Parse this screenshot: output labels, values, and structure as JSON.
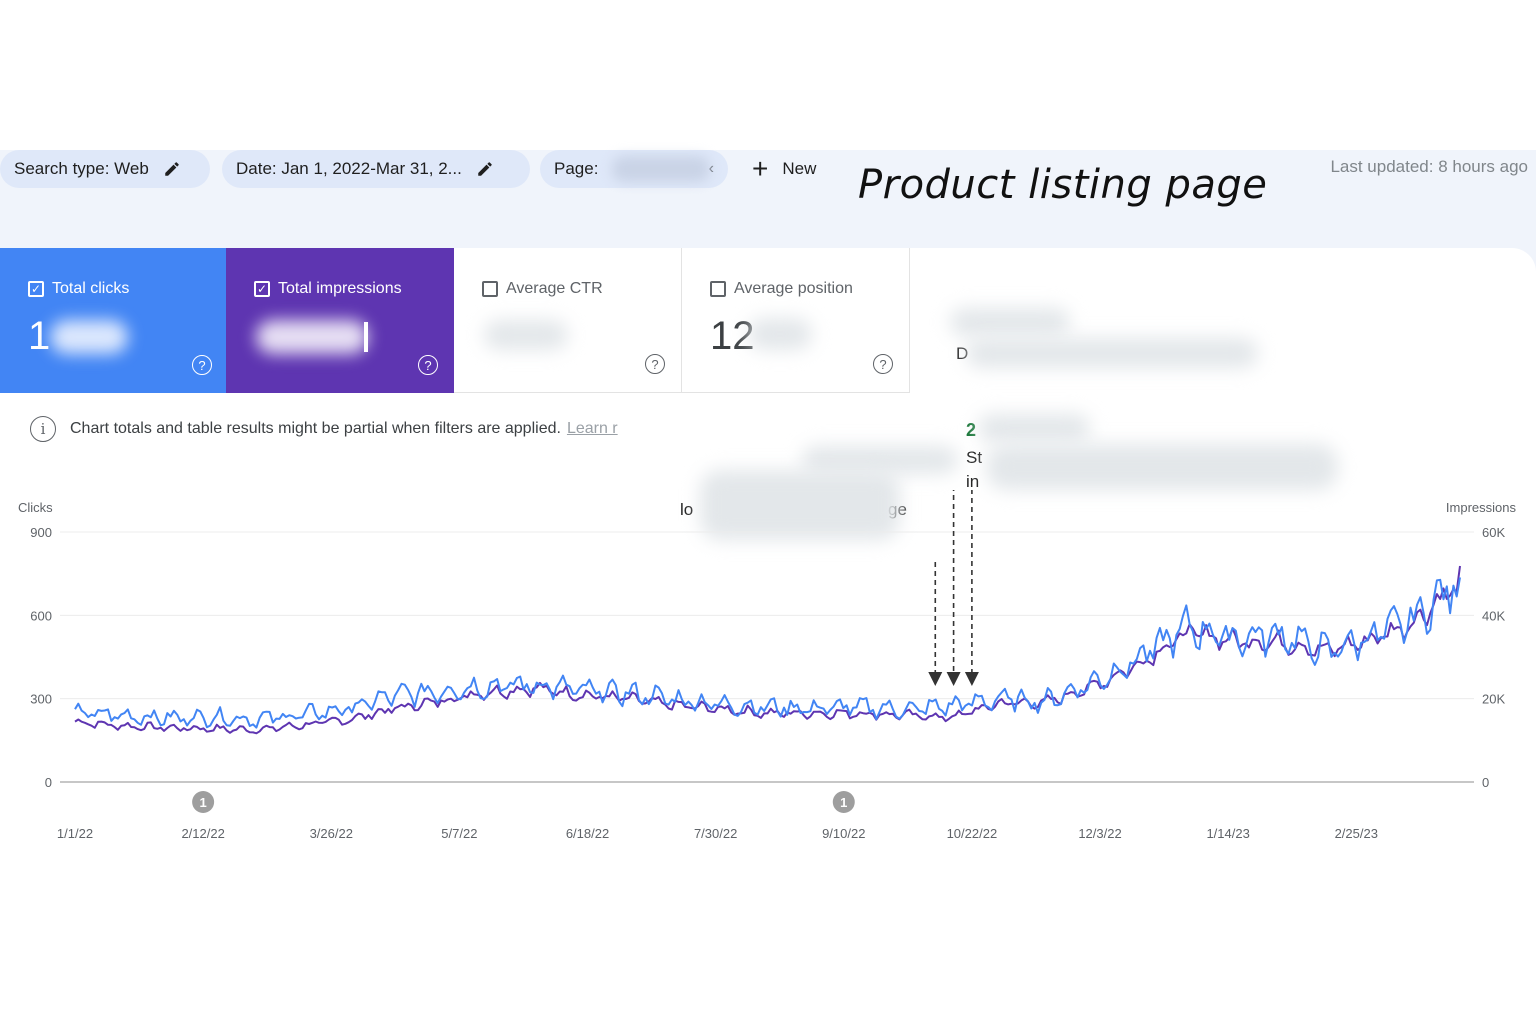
{
  "filters": {
    "search_type": "Search type: Web",
    "date": "Date: Jan 1, 2022-Mar 31, 2...",
    "page": "Page:",
    "new_label": "New"
  },
  "headline": "Product listing page",
  "last_updated": "Last updated: 8 hours ago",
  "metrics": {
    "total_clicks": {
      "label": "Total clicks",
      "checked": true,
      "value": "1",
      "color": "#4285f4"
    },
    "total_impressions": {
      "label": "Total impressions",
      "checked": true,
      "value": "",
      "color": "#5e35b1"
    },
    "average_ctr": {
      "label": "Average CTR",
      "checked": false,
      "value": ""
    },
    "average_position": {
      "label": "Average position",
      "checked": false,
      "value": "12"
    }
  },
  "notice": {
    "text": "Chart totals and table results might be partial when filters are applied.",
    "link": "Learn r"
  },
  "annotations": {
    "green_mark_1": "2",
    "label_d": "D",
    "label_st": "St",
    "label_in": "in",
    "label_lo": "lo",
    "label_ge": "ge"
  },
  "chart_data": {
    "type": "line",
    "left_axis": {
      "label": "Clicks",
      "ticks": [
        "900",
        "600",
        "300",
        "0"
      ],
      "range": [
        0,
        900
      ]
    },
    "right_axis": {
      "label": "Impressions",
      "ticks": [
        "60K",
        "40K",
        "20K",
        "0"
      ],
      "range": [
        0,
        60000
      ]
    },
    "x_ticks": [
      "1/1/22",
      "2/12/22",
      "3/26/22",
      "5/7/22",
      "6/18/22",
      "7/30/22",
      "9/10/22",
      "10/22/22",
      "12/3/22",
      "1/14/23",
      "2/25/23"
    ],
    "x_range": [
      "1/1/22",
      "3/31/23"
    ],
    "event_markers": [
      {
        "date": "2/12/22",
        "label": "1"
      },
      {
        "date": "9/10/22",
        "label": "1"
      }
    ],
    "arrows": [
      "10/10/22",
      "10/16/22",
      "10/22/22"
    ],
    "series": [
      {
        "name": "",
        "axis": "left",
        "color": "#4285f4",
        "x": [
          "1/1/22",
          "1/15/22",
          "2/1/22",
          "2/15/22",
          "3/1/22",
          "3/15/22",
          "4/1/22",
          "4/15/22",
          "5/1/22",
          "5/15/22",
          "6/1/22",
          "6/15/22",
          "7/1/22",
          "7/15/22",
          "8/1/22",
          "8/15/22",
          "9/1/22",
          "9/15/22",
          "10/1/22",
          "10/15/22",
          "11/1/22",
          "11/15/22",
          "12/1/22",
          "12/15/22",
          "1/1/23",
          "1/15/23",
          "2/1/23",
          "2/15/23",
          "3/1/23",
          "3/15/23",
          "3/31/23"
        ],
        "y": [
          250,
          240,
          230,
          235,
          225,
          240,
          265,
          310,
          330,
          345,
          350,
          330,
          320,
          300,
          280,
          270,
          265,
          270,
          260,
          275,
          300,
          290,
          360,
          440,
          560,
          520,
          530,
          470,
          520,
          580,
          720
        ]
      },
      {
        "name": "",
        "axis": "right",
        "color": "#5e35b1",
        "x": [
          "1/1/22",
          "1/15/22",
          "2/1/22",
          "2/15/22",
          "3/1/22",
          "3/15/22",
          "4/1/22",
          "4/15/22",
          "5/1/22",
          "5/15/22",
          "6/1/22",
          "6/15/22",
          "7/1/22",
          "7/15/22",
          "8/1/22",
          "8/15/22",
          "9/1/22",
          "9/15/22",
          "10/1/22",
          "10/15/22",
          "11/1/22",
          "11/15/22",
          "12/1/22",
          "12/15/22",
          "1/1/23",
          "1/15/23",
          "2/1/23",
          "2/15/23",
          "3/1/23",
          "3/15/23",
          "3/31/23"
        ],
        "y": [
          14500,
          13500,
          13000,
          12800,
          12500,
          13500,
          15000,
          17500,
          19500,
          21500,
          22500,
          21000,
          20000,
          18500,
          17500,
          16500,
          16500,
          16500,
          16000,
          15500,
          19000,
          19000,
          23000,
          28000,
          36000,
          34000,
          33500,
          31500,
          34000,
          38000,
          48000
        ]
      }
    ]
  }
}
